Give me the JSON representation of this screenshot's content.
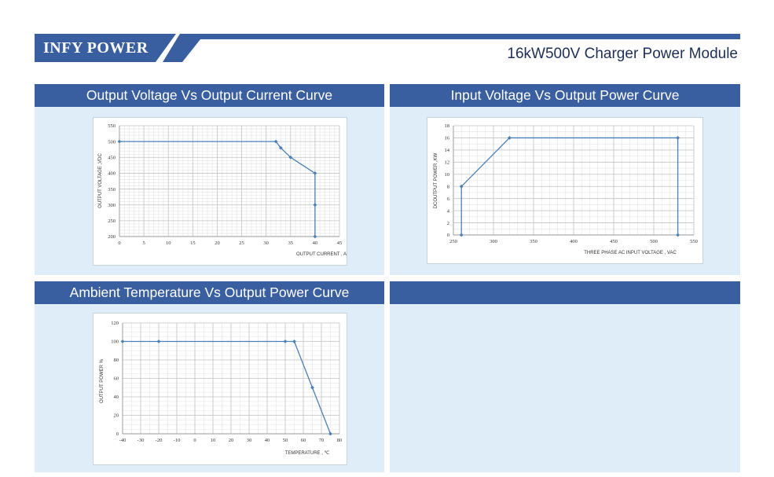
{
  "brand": {
    "name": "INFY POWER",
    "product": "16kW500V Charger Power Module",
    "color": "#3a5fa0"
  },
  "panels": [
    {
      "title": "Output Voltage Vs Output Current Curve"
    },
    {
      "title": "Input Voltage Vs Output Power Curve"
    },
    {
      "title": "Ambient Temperature Vs Output Power Curve"
    },
    {
      "title": ""
    }
  ],
  "chart_data": [
    {
      "id": "vi",
      "type": "line",
      "xlabel": "OUTPUT CURRENT , A",
      "ylabel": "OUTPUT VOLTAGE ,VDC",
      "xlim": [
        0,
        45
      ],
      "ylim": [
        200,
        550
      ],
      "xticks": [
        0,
        5,
        10,
        15,
        20,
        25,
        30,
        35,
        40,
        45
      ],
      "yticks": [
        200,
        250,
        300,
        350,
        400,
        450,
        500,
        550
      ],
      "xminor": 1,
      "yminor": 10,
      "grid": true,
      "series": [
        {
          "color": "#4a7fb5",
          "x": [
            0,
            32,
            33,
            35,
            40,
            40,
            40
          ],
          "y": [
            500,
            500,
            480,
            450,
            400,
            300,
            200
          ]
        }
      ]
    },
    {
      "id": "vp",
      "type": "line",
      "xlabel": "THREE PHASE AC INPUT VOLTAGE , VAC",
      "ylabel": "DCOUTPUT POWER ,KW",
      "xlim": [
        250,
        550
      ],
      "ylim": [
        0,
        18
      ],
      "xticks": [
        250,
        300,
        350,
        400,
        450,
        500,
        550
      ],
      "yticks": [
        0,
        2,
        4,
        6,
        8,
        10,
        12,
        14,
        16,
        18
      ],
      "xminor": 10,
      "yminor": 1,
      "grid": true,
      "series": [
        {
          "color": "#4a7fb5",
          "x": [
            260,
            260,
            320,
            530,
            530
          ],
          "y": [
            0,
            8,
            16,
            16,
            0
          ]
        }
      ]
    },
    {
      "id": "tp",
      "type": "line",
      "xlabel": "TEMPERATURE , ℃",
      "ylabel": "OUTPUT POWER %",
      "xlim": [
        -40,
        80
      ],
      "ylim": [
        0,
        120
      ],
      "xticks": [
        -40,
        -30,
        -20,
        -10,
        0,
        10,
        20,
        30,
        40,
        50,
        60,
        70,
        80
      ],
      "yticks": [
        0,
        20,
        40,
        60,
        80,
        100,
        120
      ],
      "xminor": 5,
      "yminor": 5,
      "grid": true,
      "series": [
        {
          "color": "#4a7fb5",
          "x": [
            -40,
            -20,
            50,
            55,
            65,
            75
          ],
          "y": [
            100,
            100,
            100,
            100,
            50,
            0
          ]
        }
      ]
    }
  ]
}
